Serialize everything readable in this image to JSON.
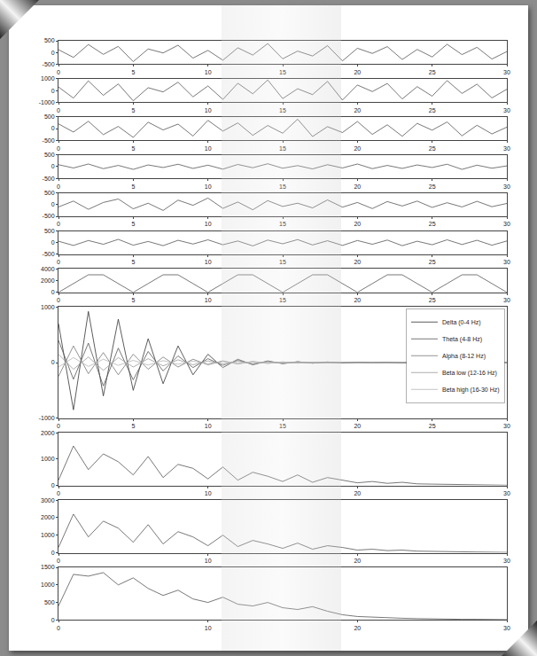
{
  "chart_data": [
    {
      "type": "line",
      "x": [
        0,
        1,
        2,
        3,
        4,
        5,
        6,
        7,
        8,
        9,
        10,
        11,
        12,
        13,
        14,
        15,
        16,
        17,
        18,
        19,
        20,
        21,
        22,
        23,
        24,
        25,
        26,
        27,
        28,
        29,
        30
      ],
      "xlim": [
        0,
        30
      ],
      "xticks": [
        0,
        5,
        10,
        15,
        20,
        25,
        30
      ],
      "ylim": [
        -500,
        500
      ],
      "yticks": [
        -500,
        0,
        500
      ],
      "series": [
        {
          "color": "#555555",
          "values": [
            120,
            -210,
            340,
            -80,
            260,
            -390,
            150,
            -20,
            310,
            -240,
            90,
            -330,
            200,
            -110,
            380,
            -270,
            60,
            -150,
            290,
            -360,
            180,
            -40,
            250,
            -300,
            130,
            -190,
            350,
            -90,
            220,
            -280,
            40
          ]
        }
      ]
    },
    {
      "type": "line",
      "x": [
        0,
        1,
        2,
        3,
        4,
        5,
        6,
        7,
        8,
        9,
        10,
        11,
        12,
        13,
        14,
        15,
        16,
        17,
        18,
        19,
        20,
        21,
        22,
        23,
        24,
        25,
        26,
        27,
        28,
        29,
        30
      ],
      "xlim": [
        0,
        30
      ],
      "xticks": [
        0,
        5,
        10,
        15,
        20,
        25,
        30
      ],
      "ylim": [
        -1000,
        1000
      ],
      "yticks": [
        -1000,
        0,
        1000
      ],
      "series": [
        {
          "color": "#555555",
          "values": [
            300,
            -650,
            820,
            -410,
            560,
            -880,
            240,
            -120,
            710,
            -540,
            390,
            -760,
            620,
            -280,
            900,
            -690,
            150,
            -350,
            780,
            -820,
            470,
            -90,
            600,
            -720,
            330,
            -480,
            850,
            -250,
            540,
            -630,
            110
          ]
        }
      ]
    },
    {
      "type": "line",
      "x": [
        0,
        1,
        2,
        3,
        4,
        5,
        6,
        7,
        8,
        9,
        10,
        11,
        12,
        13,
        14,
        15,
        16,
        17,
        18,
        19,
        20,
        21,
        22,
        23,
        24,
        25,
        26,
        27,
        28,
        29,
        30
      ],
      "xlim": [
        0,
        30
      ],
      "xticks": [
        0,
        5,
        10,
        15,
        20,
        25,
        30
      ],
      "ylim": [
        -500,
        500
      ],
      "yticks": [
        -500,
        0,
        500
      ],
      "series": [
        {
          "color": "#555555",
          "values": [
            200,
            -150,
            310,
            -260,
            90,
            -380,
            270,
            -60,
            190,
            -320,
            350,
            -110,
            240,
            -290,
            130,
            -200,
            400,
            -340,
            80,
            -170,
            300,
            -250,
            160,
            -330,
            220,
            -70,
            280,
            -310,
            140,
            -230,
            60
          ]
        }
      ]
    },
    {
      "type": "line",
      "x": [
        0,
        1,
        2,
        3,
        4,
        5,
        6,
        7,
        8,
        9,
        10,
        11,
        12,
        13,
        14,
        15,
        16,
        17,
        18,
        19,
        20,
        21,
        22,
        23,
        24,
        25,
        26,
        27,
        28,
        29,
        30
      ],
      "xlim": [
        0,
        30
      ],
      "xticks": [
        0,
        5,
        10,
        15,
        20,
        25,
        30
      ],
      "ylim": [
        -500,
        500
      ],
      "yticks": [
        -500,
        0,
        500
      ],
      "series": [
        {
          "color": "#555555",
          "values": [
            80,
            -60,
            110,
            -90,
            50,
            -120,
            70,
            -40,
            100,
            -80,
            60,
            -110,
            90,
            -50,
            120,
            -70,
            40,
            -100,
            80,
            -60,
            110,
            -90,
            50,
            -80,
            70,
            -40,
            100,
            -120,
            60,
            -70,
            30
          ]
        }
      ]
    },
    {
      "type": "line",
      "x": [
        0,
        1,
        2,
        3,
        4,
        5,
        6,
        7,
        8,
        9,
        10,
        11,
        12,
        13,
        14,
        15,
        16,
        17,
        18,
        19,
        20,
        21,
        22,
        23,
        24,
        25,
        26,
        27,
        28,
        29,
        30
      ],
      "xlim": [
        0,
        30
      ],
      "xticks": [
        0,
        5,
        10,
        15,
        20,
        25,
        30
      ],
      "ylim": [
        -500,
        500
      ],
      "yticks": [
        -500,
        0,
        500
      ],
      "series": [
        {
          "color": "#555555",
          "values": [
            -100,
            150,
            -200,
            90,
            240,
            -180,
            60,
            -250,
            190,
            -30,
            280,
            -160,
            110,
            -220,
            170,
            -80,
            60,
            -140,
            200,
            -110,
            90,
            -170,
            130,
            -60,
            150,
            -120,
            80,
            -100,
            140,
            -90,
            50
          ]
        }
      ]
    },
    {
      "type": "line",
      "x": [
        0,
        1,
        2,
        3,
        4,
        5,
        6,
        7,
        8,
        9,
        10,
        11,
        12,
        13,
        14,
        15,
        16,
        17,
        18,
        19,
        20,
        21,
        22,
        23,
        24,
        25,
        26,
        27,
        28,
        29,
        30
      ],
      "xlim": [
        0,
        30
      ],
      "xticks": [
        0,
        5,
        10,
        15,
        20,
        25,
        30
      ],
      "ylim": [
        -500,
        500
      ],
      "yticks": [
        -500,
        0,
        500
      ],
      "series": [
        {
          "color": "#555555",
          "values": [
            60,
            -120,
            90,
            -70,
            140,
            -110,
            50,
            -130,
            100,
            -60,
            120,
            -90,
            70,
            -140,
            110,
            -50,
            130,
            -100,
            80,
            -120,
            90,
            -70,
            110,
            -130,
            60,
            -90,
            120,
            -80,
            100,
            -110,
            70
          ]
        }
      ]
    },
    {
      "type": "line",
      "x": [
        0,
        1,
        2,
        3,
        4,
        5,
        6,
        7,
        8,
        9,
        10,
        11,
        12,
        13,
        14,
        15,
        16,
        17,
        18,
        19,
        20,
        21,
        22,
        23,
        24,
        25,
        26,
        27,
        28,
        29,
        30
      ],
      "xlim": [
        0,
        30
      ],
      "xticks": [
        0,
        5,
        10,
        15,
        20,
        25,
        30
      ],
      "ylim": [
        0,
        4000
      ],
      "yticks": [
        0,
        2000,
        4000
      ],
      "series": [
        {
          "color": "#555555",
          "values": [
            0,
            1500,
            3000,
            3000,
            1500,
            0,
            1500,
            3000,
            3000,
            1500,
            0,
            1500,
            3000,
            3000,
            1500,
            0,
            1500,
            3000,
            3000,
            1500,
            0,
            1500,
            3000,
            3000,
            1500,
            0,
            1500,
            3000,
            3000,
            1500,
            0
          ]
        }
      ]
    },
    {
      "type": "line",
      "x": [
        0,
        1,
        2,
        3,
        4,
        5,
        6,
        7,
        8,
        9,
        10,
        11,
        12,
        13,
        14,
        15,
        16,
        17,
        18,
        19,
        20,
        21,
        22,
        23,
        24,
        25,
        26,
        27,
        28,
        29,
        30
      ],
      "xlim": [
        0,
        30
      ],
      "xticks": [
        0,
        5,
        10,
        15,
        20,
        25,
        30
      ],
      "ylim": [
        -1000,
        1000
      ],
      "yticks": [
        -1000,
        0,
        1000
      ],
      "legend": "upper right",
      "series": [
        {
          "name": "Delta (0-4 Hz)",
          "color": "#333333",
          "values": [
            700,
            -850,
            920,
            -600,
            780,
            -500,
            430,
            -380,
            300,
            -220,
            150,
            -90,
            60,
            -40,
            30,
            -20,
            15,
            -10,
            10,
            -8,
            6,
            -5,
            5,
            -4,
            4,
            -3,
            3,
            -2,
            2,
            -2,
            1
          ]
        },
        {
          "name": "Theta (4-8 Hz)",
          "color": "#555555",
          "values": [
            400,
            -300,
            350,
            -420,
            260,
            -310,
            200,
            -150,
            120,
            -90,
            70,
            -50,
            40,
            -30,
            20,
            -15,
            12,
            -10,
            8,
            -6,
            5,
            -4,
            4,
            -3,
            3,
            -3,
            2,
            -2,
            2,
            -1,
            1
          ]
        },
        {
          "name": "Alpha (8-12 Hz)",
          "color": "#777777",
          "values": [
            -250,
            300,
            -200,
            180,
            -220,
            150,
            -120,
            100,
            -80,
            60,
            -40,
            30,
            -25,
            20,
            -15,
            12,
            -10,
            8,
            -6,
            5,
            -4,
            4,
            -3,
            3,
            -2,
            2,
            -2,
            1,
            -1,
            1,
            0
          ]
        },
        {
          "name": "Beta low (12-16 Hz)",
          "color": "#999999",
          "values": [
            150,
            -120,
            100,
            -140,
            90,
            -80,
            70,
            -60,
            50,
            -40,
            30,
            -25,
            20,
            -18,
            15,
            -12,
            10,
            -8,
            6,
            -5,
            4,
            -4,
            3,
            -3,
            2,
            -2,
            2,
            -1,
            1,
            -1,
            0
          ]
        },
        {
          "name": "Beta high (16-30 Hz)",
          "color": "#b5b5b5",
          "values": [
            -80,
            90,
            -70,
            60,
            -50,
            40,
            -45,
            35,
            -30,
            25,
            -20,
            18,
            -15,
            12,
            -10,
            8,
            -7,
            6,
            -5,
            4,
            -3,
            3,
            -2,
            2,
            -2,
            1,
            -1,
            1,
            -1,
            0,
            0
          ]
        }
      ]
    },
    {
      "type": "line",
      "x": [
        0,
        1,
        2,
        3,
        4,
        5,
        6,
        7,
        8,
        9,
        10,
        11,
        12,
        13,
        14,
        15,
        16,
        17,
        18,
        19,
        20,
        21,
        22,
        23,
        24,
        25,
        26,
        27,
        28,
        29,
        30
      ],
      "xlim": [
        0,
        30
      ],
      "xticks": [
        0,
        10,
        20,
        30
      ],
      "ylim": [
        0,
        2000
      ],
      "yticks": [
        0,
        1000,
        2000
      ],
      "series": [
        {
          "color": "#555555",
          "values": [
            200,
            1500,
            600,
            1200,
            900,
            400,
            1100,
            300,
            800,
            650,
            250,
            700,
            200,
            500,
            350,
            150,
            400,
            120,
            300,
            200,
            100,
            150,
            80,
            120,
            60,
            50,
            40,
            30,
            30,
            20,
            10
          ]
        }
      ]
    },
    {
      "type": "line",
      "x": [
        0,
        1,
        2,
        3,
        4,
        5,
        6,
        7,
        8,
        9,
        10,
        11,
        12,
        13,
        14,
        15,
        16,
        17,
        18,
        19,
        20,
        21,
        22,
        23,
        24,
        25,
        26,
        27,
        28,
        29,
        30
      ],
      "xlim": [
        0,
        30
      ],
      "xticks": [
        0,
        10,
        20,
        30
      ],
      "ylim": [
        0,
        3000
      ],
      "yticks": [
        0,
        1000,
        2000,
        3000
      ],
      "series": [
        {
          "color": "#555555",
          "values": [
            300,
            2200,
            900,
            1800,
            1400,
            600,
            1600,
            500,
            1200,
            900,
            400,
            1000,
            350,
            700,
            500,
            250,
            550,
            200,
            400,
            300,
            150,
            200,
            120,
            150,
            90,
            70,
            60,
            40,
            40,
            30,
            20
          ]
        }
      ]
    },
    {
      "type": "line",
      "x": [
        0,
        1,
        2,
        3,
        4,
        5,
        6,
        7,
        8,
        9,
        10,
        11,
        12,
        13,
        14,
        15,
        16,
        17,
        18,
        19,
        20,
        21,
        22,
        23,
        24,
        25,
        26,
        27,
        28,
        29,
        30
      ],
      "xlim": [
        0,
        30
      ],
      "xticks": [
        0,
        10,
        20,
        30
      ],
      "ylim": [
        0,
        1500
      ],
      "yticks": [
        0,
        500,
        1000,
        1500
      ],
      "series": [
        {
          "color": "#555555",
          "values": [
            400,
            1300,
            1250,
            1350,
            1000,
            1200,
            900,
            700,
            850,
            600,
            500,
            650,
            450,
            400,
            500,
            350,
            300,
            380,
            250,
            150,
            100,
            80,
            60,
            50,
            40,
            30,
            30,
            20,
            20,
            10,
            10
          ]
        }
      ]
    }
  ]
}
